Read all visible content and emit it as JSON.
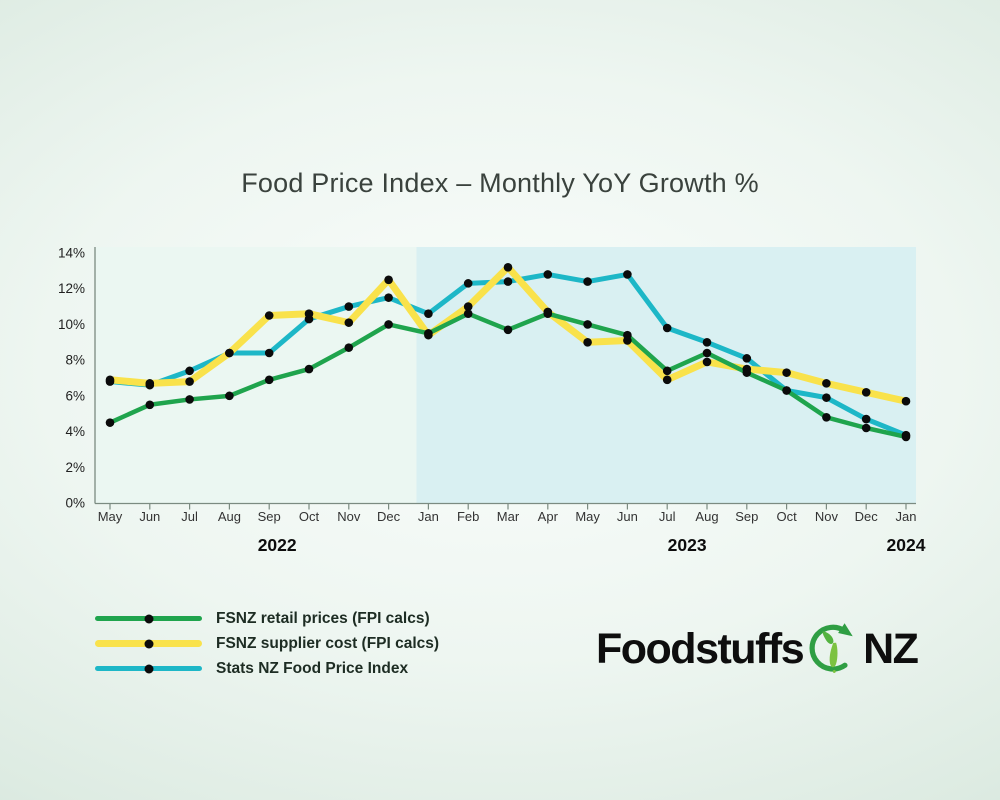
{
  "title": "Food Price Index – Monthly YoY Growth %",
  "chart_data": {
    "type": "line",
    "x_labels": [
      "May",
      "Jun",
      "Jul",
      "Aug",
      "Sep",
      "Oct",
      "Nov",
      "Dec",
      "Jan",
      "Feb",
      "Mar",
      "Apr",
      "May",
      "Jun",
      "Jul",
      "Aug",
      "Sep",
      "Oct",
      "Nov",
      "Dec",
      "Jan"
    ],
    "x_year_row": [
      {
        "text": "2022",
        "x_index": 4.2
      },
      {
        "text": "2023",
        "x_index": 14.5
      },
      {
        "text": "2024",
        "x_index": 20
      }
    ],
    "ylim": [
      0,
      14
    ],
    "y_tick_step": 2,
    "y_tick_labels": [
      "0%",
      "2%",
      "4%",
      "6%",
      "8%",
      "10%",
      "12%",
      "14%"
    ],
    "grid": "off",
    "legend_position": "bottom-left",
    "background_split_index": 7.7,
    "point_color": "#0b0b0b",
    "draw_order": [
      2,
      1,
      0
    ],
    "series": [
      {
        "name": "FSNZ retail prices (FPI calcs)",
        "color": "#1fa44d",
        "line_width": 4.5,
        "values": [
          4.5,
          5.5,
          5.8,
          6.0,
          6.9,
          7.5,
          8.7,
          10.0,
          9.5,
          10.6,
          9.7,
          10.6,
          10.0,
          9.4,
          7.4,
          8.4,
          7.3,
          6.3,
          4.8,
          4.2,
          3.7
        ]
      },
      {
        "name": "FSNZ supplier cost (FPI calcs)",
        "color": "#f9e24b",
        "line_width": 7,
        "values": [
          6.9,
          6.7,
          6.8,
          8.4,
          10.5,
          10.6,
          10.1,
          12.5,
          9.4,
          11.0,
          13.2,
          10.7,
          9.0,
          9.1,
          6.9,
          7.9,
          7.5,
          7.3,
          6.7,
          6.2,
          5.7
        ]
      },
      {
        "name": "Stats NZ Food Price Index",
        "color": "#1db7c7",
        "line_width": 5,
        "values": [
          6.8,
          6.6,
          7.4,
          8.4,
          8.4,
          10.3,
          11.0,
          11.5,
          10.6,
          12.3,
          12.4,
          12.8,
          12.4,
          12.8,
          9.8,
          9.0,
          8.1,
          6.3,
          5.9,
          4.7,
          3.8
        ]
      }
    ],
    "colors": {
      "plot_bg_left": "#ebf7f2",
      "plot_bg_right": "#d9f0f2",
      "axis": "#7b8b81",
      "tick_label": "#1f1f1f",
      "month_label": "#333333",
      "year_label": "#0d0d0d"
    }
  },
  "logo": {
    "text_left": "Foodstuffs",
    "text_right": "NZ",
    "icon": "nz-map-circular-arrow-icon",
    "icon_colors": {
      "arrow": "#2f9e43",
      "map_north": "#54b340",
      "map_south": "#7cc241"
    }
  }
}
